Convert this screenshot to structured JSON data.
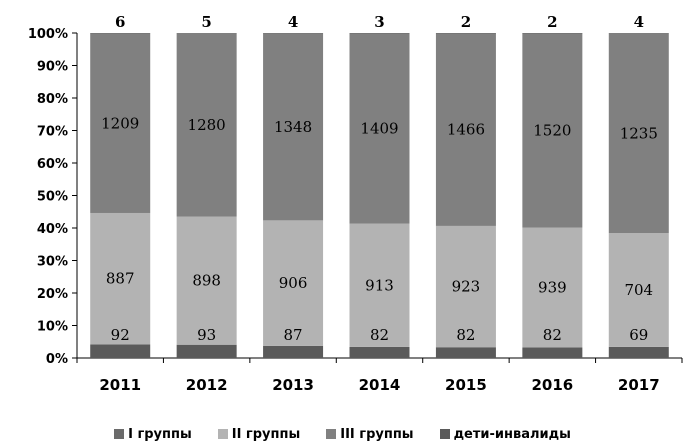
{
  "chart_data": {
    "type": "bar",
    "stacked": "percent",
    "categories": [
      "2011",
      "2012",
      "2013",
      "2014",
      "2015",
      "2016",
      "2017"
    ],
    "series": [
      {
        "name": "дети-инвалиды",
        "values": [
          92,
          93,
          87,
          82,
          82,
          82,
          69
        ],
        "color": "#5a5a5a"
      },
      {
        "name": "II группы",
        "values": [
          887,
          898,
          906,
          913,
          923,
          939,
          704
        ],
        "color": "#b3b3b3"
      },
      {
        "name": "III группы",
        "values": [
          1209,
          1280,
          1348,
          1409,
          1466,
          1520,
          1235
        ],
        "color": "#808080"
      },
      {
        "name": "I группы",
        "values": [
          6,
          5,
          4,
          3,
          2,
          2,
          4
        ],
        "color": "#6b6b6b"
      }
    ],
    "legend_order": [
      "I группы",
      "II группы",
      "III группы",
      "дети-инвалиды"
    ],
    "ylim": [
      0,
      100
    ],
    "yticks": [
      "0%",
      "10%",
      "20%",
      "30%",
      "40%",
      "50%",
      "60%",
      "70%",
      "80%",
      "90%",
      "100%"
    ],
    "grid": false,
    "legend_position": "bottom"
  }
}
